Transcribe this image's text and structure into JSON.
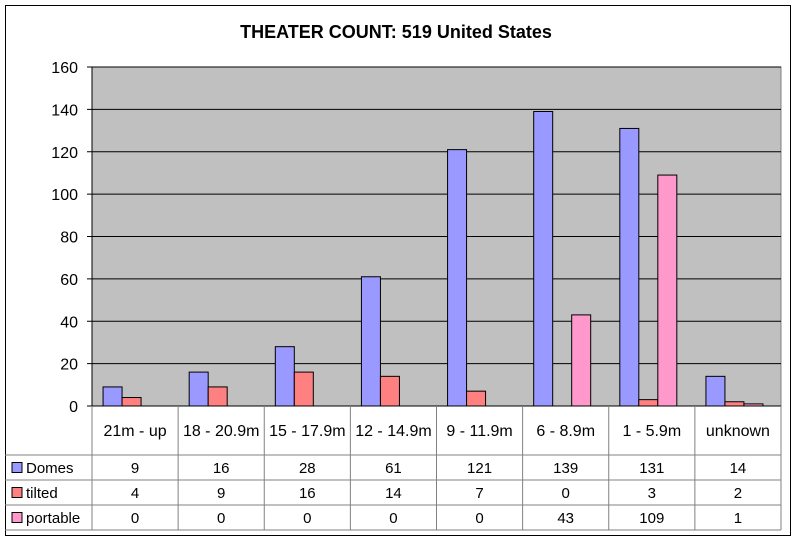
{
  "chart_data": {
    "type": "bar",
    "title": "THEATER COUNT:  519 United States",
    "categories": [
      "21m - up",
      "18 - 20.9m",
      "15 - 17.9m",
      "12 - 14.9m",
      "9 - 11.9m",
      "6 - 8.9m",
      "1 - 5.9m",
      "unknown"
    ],
    "ylim": [
      0,
      160
    ],
    "yticks": [
      "0",
      "20",
      "40",
      "60",
      "80",
      "100",
      "120",
      "140",
      "160"
    ],
    "grid": true,
    "legend": "data-table-left",
    "series": [
      {
        "name": "Domes",
        "color": "#9999ff",
        "values": [
          9,
          16,
          28,
          61,
          121,
          139,
          131,
          14
        ]
      },
      {
        "name": "tilted",
        "color": "#ff8080",
        "values": [
          4,
          9,
          16,
          14,
          7,
          0,
          3,
          2
        ]
      },
      {
        "name": "portable",
        "color": "#ff99cc",
        "values": [
          0,
          0,
          0,
          0,
          0,
          43,
          109,
          1
        ]
      }
    ],
    "table": [
      [
        "9",
        "16",
        "28",
        "61",
        "121",
        "139",
        "131",
        "14"
      ],
      [
        "4",
        "9",
        "16",
        "14",
        "7",
        "0",
        "3",
        "2"
      ],
      [
        "0",
        "0",
        "0",
        "0",
        "0",
        "43",
        "109",
        "1"
      ]
    ],
    "plot_background": "#c0c0c0"
  }
}
